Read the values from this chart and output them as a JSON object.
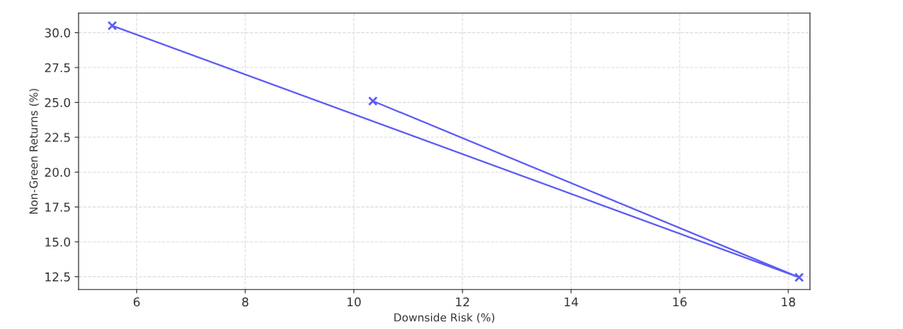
{
  "chart_data": {
    "type": "line",
    "xlabel": "Downside Risk (%)",
    "ylabel": "Non-Green Returns (%)",
    "series": [
      {
        "color": "#5b5bf5",
        "x": [
          5.55,
          18.2,
          10.35
        ],
        "values": [
          30.5,
          12.45,
          25.1
        ]
      }
    ],
    "xlim": [
      4.93,
      18.4
    ],
    "xticks": [
      6,
      8,
      10,
      12,
      14,
      16,
      18
    ],
    "ylim": [
      11.58,
      31.4
    ],
    "yticks": [
      {
        "value": 12.5,
        "label": "12.5"
      },
      {
        "value": 15,
        "label": "15.0"
      },
      {
        "value": 17.5,
        "label": "17.5"
      },
      {
        "value": 20,
        "label": "20.0"
      },
      {
        "value": 22.5,
        "label": "22.5"
      },
      {
        "value": 25,
        "label": "25.0"
      },
      {
        "value": 27.5,
        "label": "27.5"
      },
      {
        "value": 30,
        "label": "30.0"
      }
    ],
    "grid": true,
    "marker": "cross",
    "line_style": "solid"
  }
}
